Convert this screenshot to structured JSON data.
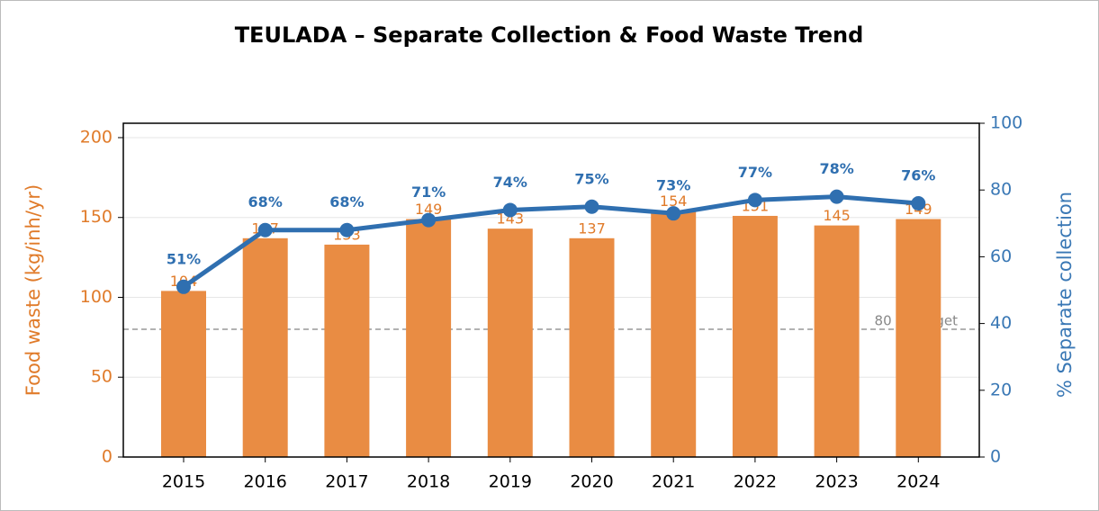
{
  "chart_data": {
    "type": "bar_line",
    "title": "TEULADA – Separate Collection & Food Waste Trend",
    "categories": [
      "2015",
      "2016",
      "2017",
      "2018",
      "2019",
      "2020",
      "2021",
      "2022",
      "2023",
      "2024"
    ],
    "series": [
      {
        "type": "bar",
        "color": "#e98c43",
        "label_color": "#e07b2a",
        "values": [
          104,
          137,
          133,
          149,
          143,
          137,
          154,
          151,
          145,
          149
        ]
      },
      {
        "type": "line",
        "axis": "y2",
        "color": "#2f6fb0",
        "values": [
          51,
          68,
          68,
          71,
          74,
          75,
          73,
          77,
          78,
          76
        ],
        "value_labels": [
          "51%",
          "68%",
          "68%",
          "71%",
          "74%",
          "75%",
          "73%",
          "77%",
          "78%",
          "76%"
        ]
      }
    ],
    "ylabel": "Food waste (kg/inh/yr)",
    "y2label": "% Separate collection",
    "ylim": [
      0,
      209
    ],
    "yticks": [
      0,
      50,
      100,
      150,
      200
    ],
    "y2lim": [
      0,
      100
    ],
    "y2ticks": [
      0,
      20,
      40,
      60,
      80,
      100
    ],
    "ycolor": "#e07b2a",
    "y2color": "#3a78b5",
    "grid": true,
    "annotations": [
      {
        "text": "80 kg target",
        "y": 80
      }
    ]
  }
}
